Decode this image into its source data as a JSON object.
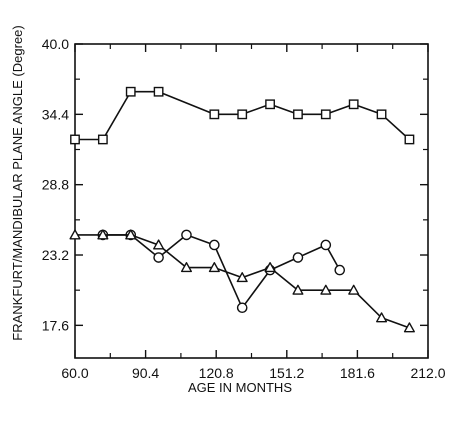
{
  "chart_data": {
    "type": "line",
    "title": "",
    "xlabel": "AGE IN MONTHS",
    "ylabel": "FRANKFURT/MANDIBULAR PLANE ANGLE (Degree)",
    "xlim": [
      60.0,
      212.0
    ],
    "ylim": [
      15.0,
      40.0
    ],
    "x_ticks": [
      "60.0",
      "90.4",
      "120.8",
      "151.2",
      "181.6",
      "212.0"
    ],
    "x_tick_values": [
      60.0,
      90.4,
      120.8,
      151.2,
      181.6,
      212.0
    ],
    "y_ticks": [
      "17.6",
      "23.2",
      "28.8",
      "34.4",
      "40.0"
    ],
    "y_tick_values": [
      17.6,
      23.2,
      28.8,
      34.4,
      40.0
    ],
    "grid": false,
    "series": [
      {
        "marker": "square",
        "x": [
          60,
          72,
          84,
          96,
          120,
          132,
          144,
          156,
          168,
          180,
          192,
          204
        ],
        "y": [
          32.4,
          32.4,
          36.2,
          36.2,
          34.4,
          34.4,
          35.2,
          34.4,
          34.4,
          35.2,
          34.4,
          32.4
        ]
      },
      {
        "marker": "circle",
        "x": [
          72,
          84,
          96,
          108,
          120,
          132,
          144,
          156,
          168,
          174
        ],
        "y": [
          24.8,
          24.8,
          23.0,
          24.8,
          24.0,
          19.0,
          22.0,
          23.0,
          24.0,
          22.0
        ]
      },
      {
        "marker": "triangle",
        "x": [
          60,
          72,
          84,
          96,
          108,
          120,
          132,
          144,
          156,
          168,
          180,
          192,
          204
        ],
        "y": [
          24.8,
          24.8,
          24.8,
          24.0,
          22.2,
          22.2,
          21.4,
          22.2,
          20.4,
          20.4,
          20.4,
          18.2,
          17.4
        ]
      }
    ]
  }
}
